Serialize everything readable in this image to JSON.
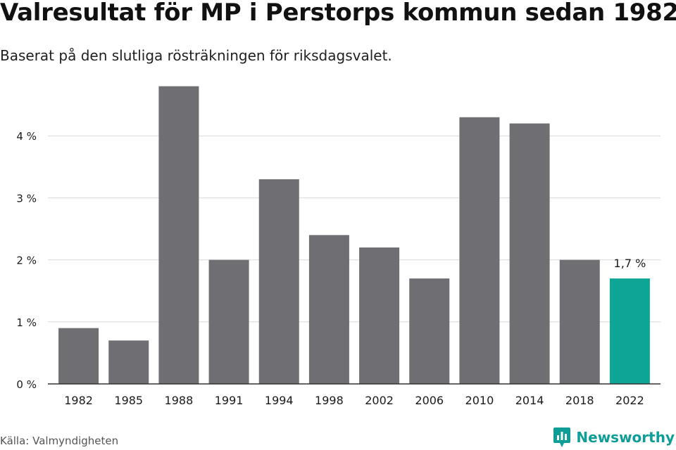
{
  "title": "Valresultat för MP i Perstorps kommun sedan 1982",
  "subtitle": "Baserat på den slutliga rösträkningen för riksdagsvalet.",
  "source": "Källa: Valmyndigheten",
  "brand": {
    "name": "Newsworthy",
    "icon": "newsworthy-logo-icon"
  },
  "colors": {
    "bar": "#6f6e73",
    "highlight": "#0ea596",
    "grid": "#d9d9d9",
    "axis": "#333333",
    "text": "#1a1a1a"
  },
  "chart_data": {
    "type": "bar",
    "categories": [
      "1982",
      "1985",
      "1988",
      "1991",
      "1994",
      "1998",
      "2002",
      "2006",
      "2010",
      "2014",
      "2018",
      "2022"
    ],
    "values": [
      0.9,
      0.7,
      4.8,
      2.0,
      3.3,
      2.4,
      2.2,
      1.7,
      4.3,
      4.2,
      2.0,
      1.7
    ],
    "highlight_index": 11,
    "annotations": [
      {
        "index": 11,
        "text": "1,7 %"
      }
    ],
    "yticks": [
      0,
      1,
      2,
      3,
      4
    ],
    "ytick_labels": [
      "0 %",
      "1 %",
      "2 %",
      "3 %",
      "4 %"
    ],
    "ylim": [
      0,
      5
    ],
    "grid": true,
    "legend": false
  }
}
